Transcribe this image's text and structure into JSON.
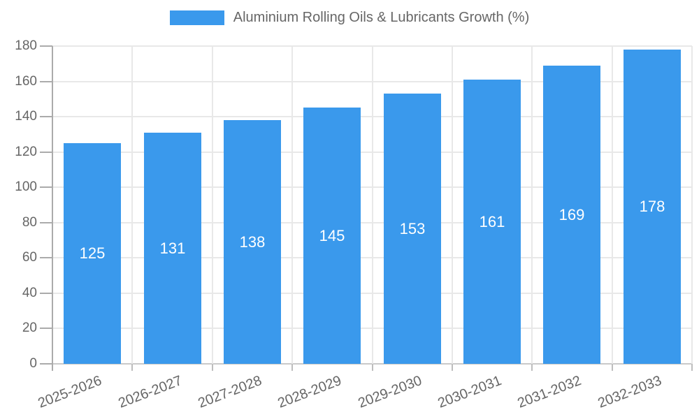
{
  "chart_data": {
    "type": "bar",
    "title": "",
    "series_name": "Aluminium Rolling Oils & Lubricants Growth (%)",
    "categories": [
      "2025-2026",
      "2026-2027",
      "2027-2028",
      "2028-2029",
      "2029-2030",
      "2030-2031",
      "2031-2032",
      "2032-2033"
    ],
    "values": [
      125,
      131,
      138,
      145,
      153,
      161,
      169,
      178
    ],
    "bar_value_labels": [
      "125",
      "131",
      "138",
      "145",
      "153",
      "161",
      "169",
      "178"
    ],
    "xlabel": "",
    "ylabel": "",
    "ylim": [
      0,
      180
    ],
    "ytick_step": 20,
    "yticks": [
      0,
      20,
      40,
      60,
      80,
      100,
      120,
      140,
      160,
      180
    ],
    "grid": true,
    "legend_position": "top",
    "x_tick_rotation_deg": -21,
    "colors": {
      "bar": "#3A99EC",
      "bar_label": "#FFFFFF",
      "tick_text": "#666666",
      "grid": "#E8E8E8",
      "baseline": "#C9C9C9",
      "axis": "#ABABAB"
    }
  },
  "legend": {
    "label": "Aluminium Rolling Oils & Lubricants Growth (%)"
  }
}
